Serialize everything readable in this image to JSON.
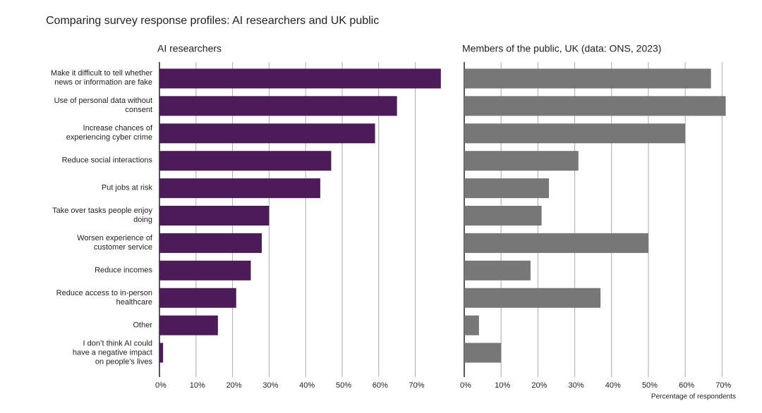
{
  "title": "Comparing survey response profiles: AI researchers and UK public",
  "chart_data": [
    {
      "type": "barh",
      "title": "AI researchers",
      "color": "#4b1c57",
      "categories": [
        "Make it difficult to tell whether\nnews or information are fake",
        "Use of personal data without\nconsent",
        "Increase chances of\nexperiencing cyber crime",
        "Reduce social interactions",
        "Put jobs at risk",
        "Take over tasks people enjoy\ndoing",
        "Worsen experience of\ncustomer service",
        "Reduce incomes",
        "Reduce access to in-person\nhealthcare",
        "Other",
        "I don’t think AI could\nhave a negative impact\non people’s lives"
      ],
      "values": [
        77,
        65,
        59,
        47,
        44,
        30,
        28,
        25,
        21,
        16,
        1
      ],
      "xlim": [
        0,
        78
      ],
      "xticks": [
        {
          "value": 0,
          "label": "0%"
        },
        {
          "value": 10,
          "label": "10%"
        },
        {
          "value": 20,
          "label": "20%"
        },
        {
          "value": 30,
          "label": "30%"
        },
        {
          "value": 40,
          "label": "40%"
        },
        {
          "value": 50,
          "label": "50%"
        },
        {
          "value": 60,
          "label": "60%"
        },
        {
          "value": 70,
          "label": "70%"
        }
      ],
      "grid": true
    },
    {
      "type": "barh",
      "title": "Members of the public, UK (data: ONS, 2023)",
      "color": "#777777",
      "x_label": "Percentage of respondents",
      "values": [
        67,
        71,
        60,
        31,
        23,
        21,
        50,
        18,
        37,
        4,
        10
      ],
      "xlim": [
        0,
        73
      ],
      "xticks": [
        {
          "value": 0,
          "label": "0%"
        },
        {
          "value": 10,
          "label": "10%"
        },
        {
          "value": 20,
          "label": "20%"
        },
        {
          "value": 30,
          "label": "30%"
        },
        {
          "value": 40,
          "label": "40%"
        },
        {
          "value": 50,
          "label": "50%"
        },
        {
          "value": 60,
          "label": "60%"
        },
        {
          "value": 70,
          "label": "70%"
        }
      ],
      "grid": true
    }
  ]
}
